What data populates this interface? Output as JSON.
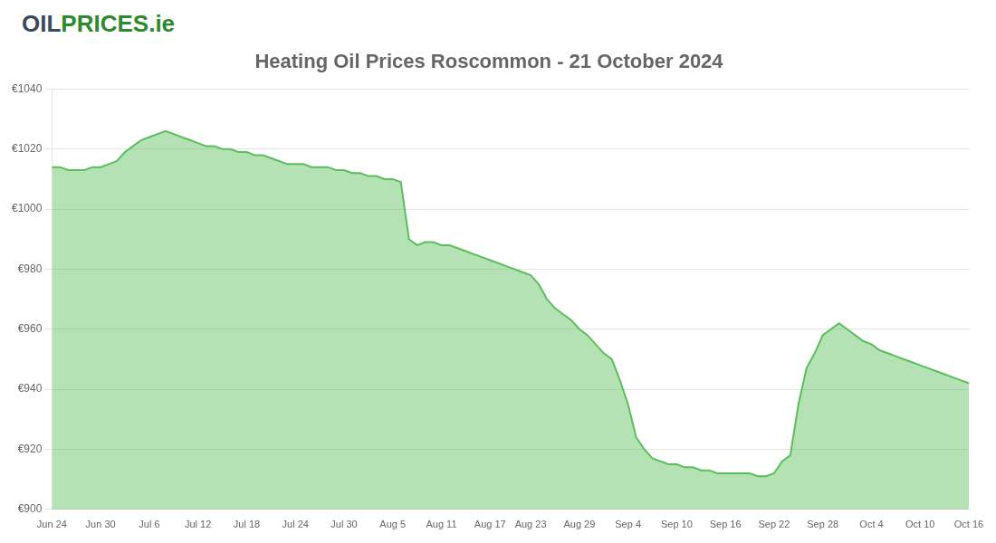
{
  "chart_data": {
    "type": "area",
    "title": "Heating Oil Prices Roscommon - 21 October 2024",
    "annotations": [
      {
        "text": "OIL",
        "color": "#3a4a5c"
      },
      {
        "text": "PRICES",
        "color": "#2d8a2d"
      },
      {
        "text": ".ie",
        "color": "#2d8a2d"
      }
    ],
    "categories": [
      "Jun 24",
      null,
      null,
      null,
      null,
      null,
      "Jun 30",
      null,
      null,
      null,
      null,
      null,
      "Jul 6",
      null,
      null,
      null,
      null,
      null,
      "Jul 12",
      null,
      null,
      null,
      null,
      null,
      "Jul 18",
      null,
      null,
      null,
      null,
      null,
      "Jul 24",
      null,
      null,
      null,
      null,
      null,
      "Jul 30",
      null,
      null,
      null,
      null,
      null,
      "Aug 5",
      null,
      null,
      null,
      null,
      null,
      "Aug 11",
      null,
      null,
      null,
      null,
      null,
      "Aug 17",
      null,
      null,
      null,
      null,
      "Aug 23",
      null,
      null,
      null,
      null,
      null,
      "Aug 29",
      null,
      null,
      null,
      null,
      null,
      "Sep 4",
      null,
      null,
      null,
      null,
      null,
      "Sep 10",
      null,
      null,
      null,
      null,
      null,
      "Sep 16",
      null,
      null,
      null,
      null,
      null,
      "Sep 22",
      null,
      null,
      null,
      null,
      null,
      "Sep 28",
      null,
      null,
      null,
      null,
      null,
      "Oct 4",
      null,
      null,
      null,
      null,
      null,
      "Oct 10",
      null,
      null,
      null,
      null,
      null,
      "Oct 16"
    ],
    "values": [
      1014,
      1014,
      1013,
      1013,
      1013,
      1014,
      1014,
      1015,
      1016,
      1019,
      1021,
      1023,
      1024,
      1025,
      1026,
      1025,
      1024,
      1023,
      1022,
      1021,
      1021,
      1020,
      1020,
      1019,
      1019,
      1018,
      1018,
      1017,
      1016,
      1015,
      1015,
      1015,
      1014,
      1014,
      1014,
      1013,
      1013,
      1012,
      1012,
      1011,
      1011,
      1010,
      1010,
      1009,
      990,
      988,
      989,
      989,
      988,
      988,
      987,
      986,
      985,
      984,
      983,
      982,
      981,
      980,
      979,
      978,
      975,
      970,
      967,
      965,
      963,
      960,
      958,
      955,
      952,
      950,
      943,
      935,
      924,
      920,
      917,
      916,
      915,
      915,
      914,
      914,
      913,
      913,
      912,
      912,
      912,
      912,
      912,
      911,
      911,
      912,
      916,
      918,
      935,
      947,
      952,
      958,
      960,
      962,
      960,
      958,
      956,
      955,
      953,
      952,
      951,
      950,
      949,
      948,
      947,
      946,
      945,
      944,
      943,
      942
    ],
    "color": "#5abf5a",
    "ylim": [
      900,
      1040
    ],
    "yticks": [
      {
        "value": 900,
        "label": "€900"
      },
      {
        "value": 920,
        "label": "€920"
      },
      {
        "value": 940,
        "label": "€940"
      },
      {
        "value": 960,
        "label": "€960"
      },
      {
        "value": 980,
        "label": "€980"
      },
      {
        "value": 1000,
        "label": "€1000"
      },
      {
        "value": 1020,
        "label": "€1020"
      },
      {
        "value": 1040,
        "label": "€1040"
      }
    ],
    "grid": "y",
    "legend": false
  }
}
